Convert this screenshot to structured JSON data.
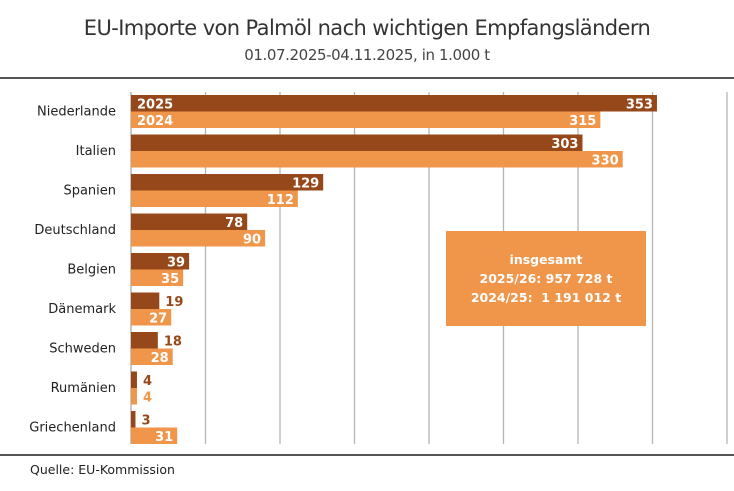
{
  "chart_data": {
    "type": "bar",
    "orientation": "horizontal",
    "title": "EU-Importe von Palmöl nach wichtigen Empfangsländern",
    "subtitle": "01.07.2025-04.11.2025, in 1.000 t",
    "xlabel": "",
    "ylabel": "",
    "xlim": [
      0,
      400
    ],
    "grid_step": 50,
    "grid": true,
    "categories": [
      "Niederlande",
      "Italien",
      "Spanien",
      "Deutschland",
      "Belgien",
      "Dänemark",
      "Schweden",
      "Rumänien",
      "Griechenland"
    ],
    "series": [
      {
        "name": "2025",
        "color": "#96481a",
        "values": [
          353,
          303,
          129,
          78,
          39,
          19,
          18,
          4,
          3
        ]
      },
      {
        "name": "2024",
        "color": "#f0964b",
        "values": [
          315,
          330,
          112,
          90,
          35,
          27,
          28,
          4,
          31
        ]
      }
    ],
    "legend_placement": "inline-first-bars",
    "annotation": {
      "heading": "insgesamt",
      "line1": "2025/26: 957 728 t",
      "line2": "2024/25:  1 191 012 t"
    },
    "source": "Quelle: EU-Kommission"
  }
}
